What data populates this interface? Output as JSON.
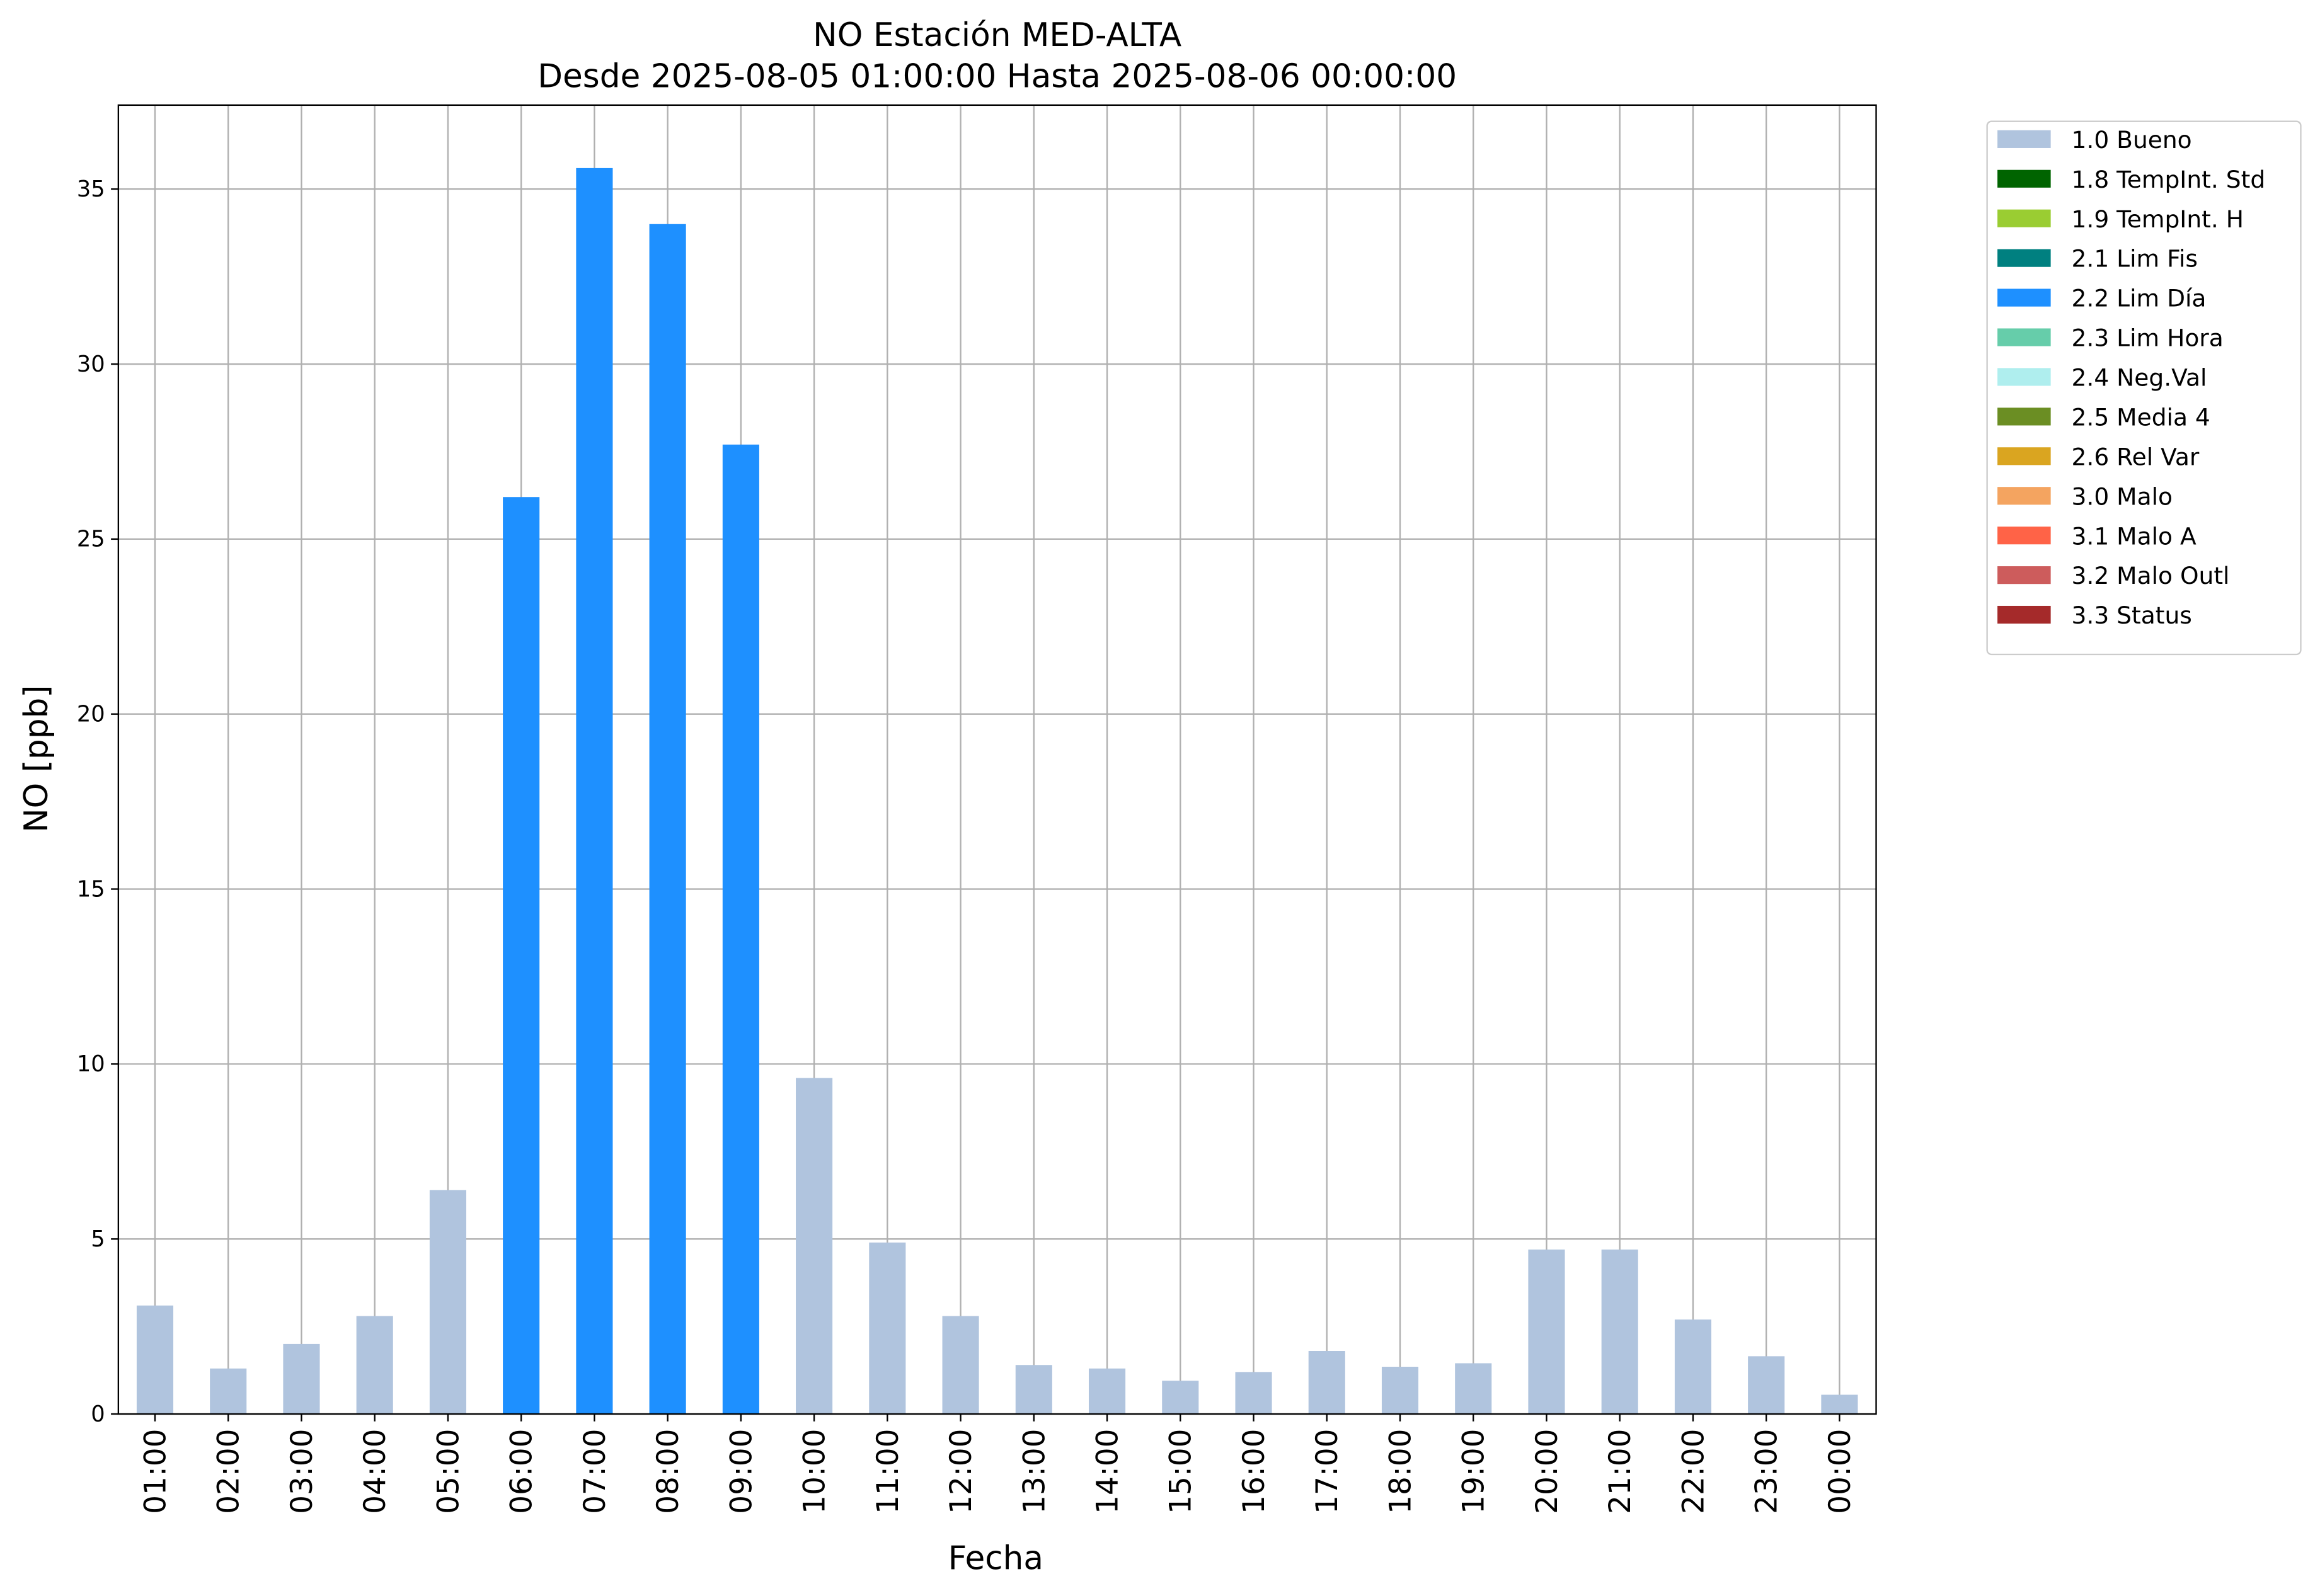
{
  "chart_data": {
    "type": "bar",
    "stacked": true,
    "title": "NO Estación MED-ALTA",
    "subtitle": "Desde 2025-08-05 01:00:00 Hasta 2025-08-06 00:00:00",
    "x_label": "Fecha",
    "y_label": "NO [ppb]",
    "categories": [
      "01:00",
      "02:00",
      "03:00",
      "04:00",
      "05:00",
      "06:00",
      "07:00",
      "08:00",
      "09:00",
      "10:00",
      "11:00",
      "12:00",
      "13:00",
      "14:00",
      "15:00",
      "16:00",
      "17:00",
      "18:00",
      "19:00",
      "20:00",
      "21:00",
      "22:00",
      "23:00",
      "00:00"
    ],
    "series": [
      {
        "name": "1.0 Bueno",
        "color": "#b0c4de",
        "values": [
          3.1,
          1.3,
          2.0,
          2.8,
          6.4,
          null,
          null,
          null,
          null,
          9.6,
          4.9,
          2.8,
          1.4,
          1.3,
          0.95,
          1.2,
          1.8,
          1.35,
          1.45,
          4.7,
          4.7,
          2.7,
          1.65,
          0.55
        ]
      },
      {
        "name": "1.8 TempInt. Std",
        "color": "#006400",
        "values": [
          null,
          null,
          null,
          null,
          null,
          null,
          null,
          null,
          null,
          null,
          null,
          null,
          null,
          null,
          null,
          null,
          null,
          null,
          null,
          null,
          null,
          null,
          null,
          null
        ]
      },
      {
        "name": "1.9 TempInt. H",
        "color": "#9acd32",
        "values": [
          null,
          null,
          null,
          null,
          null,
          null,
          null,
          null,
          null,
          null,
          null,
          null,
          null,
          null,
          null,
          null,
          null,
          null,
          null,
          null,
          null,
          null,
          null,
          null
        ]
      },
      {
        "name": "2.1 Lim Fis",
        "color": "#008080",
        "values": [
          null,
          null,
          null,
          null,
          null,
          null,
          null,
          null,
          null,
          null,
          null,
          null,
          null,
          null,
          null,
          null,
          null,
          null,
          null,
          null,
          null,
          null,
          null,
          null
        ]
      },
      {
        "name": "2.2 Lim Día",
        "color": "#1e90ff",
        "values": [
          null,
          null,
          null,
          null,
          null,
          26.2,
          35.6,
          34.0,
          27.7,
          null,
          null,
          null,
          null,
          null,
          null,
          null,
          null,
          null,
          null,
          null,
          null,
          null,
          null,
          null
        ]
      },
      {
        "name": "2.3 Lim Hora",
        "color": "#66cdaa",
        "values": [
          null,
          null,
          null,
          null,
          null,
          null,
          null,
          null,
          null,
          null,
          null,
          null,
          null,
          null,
          null,
          null,
          null,
          null,
          null,
          null,
          null,
          null,
          null,
          null
        ]
      },
      {
        "name": "2.4 Neg.Val",
        "color": "#afeeee",
        "values": [
          null,
          null,
          null,
          null,
          null,
          null,
          null,
          null,
          null,
          null,
          null,
          null,
          null,
          null,
          null,
          null,
          null,
          null,
          null,
          null,
          null,
          null,
          null,
          null
        ]
      },
      {
        "name": "2.5 Media 4",
        "color": "#6b8e23",
        "values": [
          null,
          null,
          null,
          null,
          null,
          null,
          null,
          null,
          null,
          null,
          null,
          null,
          null,
          null,
          null,
          null,
          null,
          null,
          null,
          null,
          null,
          null,
          null,
          null
        ]
      },
      {
        "name": "2.6 Rel Var",
        "color": "#daa520",
        "values": [
          null,
          null,
          null,
          null,
          null,
          null,
          null,
          null,
          null,
          null,
          null,
          null,
          null,
          null,
          null,
          null,
          null,
          null,
          null,
          null,
          null,
          null,
          null,
          null
        ]
      },
      {
        "name": "3.0 Malo",
        "color": "#f4a460",
        "values": [
          null,
          null,
          null,
          null,
          null,
          null,
          null,
          null,
          null,
          null,
          null,
          null,
          null,
          null,
          null,
          null,
          null,
          null,
          null,
          null,
          null,
          null,
          null,
          null
        ]
      },
      {
        "name": "3.1 Malo A",
        "color": "#ff6347",
        "values": [
          null,
          null,
          null,
          null,
          null,
          null,
          null,
          null,
          null,
          null,
          null,
          null,
          null,
          null,
          null,
          null,
          null,
          null,
          null,
          null,
          null,
          null,
          null,
          null
        ]
      },
      {
        "name": "3.2 Malo Outl",
        "color": "#cd5c5c",
        "values": [
          null,
          null,
          null,
          null,
          null,
          null,
          null,
          null,
          null,
          null,
          null,
          null,
          null,
          null,
          null,
          null,
          null,
          null,
          null,
          null,
          null,
          null,
          null,
          null
        ]
      },
      {
        "name": "3.3 Status",
        "color": "#a52a2a",
        "values": [
          null,
          null,
          null,
          null,
          null,
          null,
          null,
          null,
          null,
          null,
          null,
          null,
          null,
          null,
          null,
          null,
          null,
          null,
          null,
          null,
          null,
          null,
          null,
          null
        ]
      }
    ],
    "ylim": [
      0,
      37.4
    ],
    "yticks": [
      0,
      5,
      10,
      15,
      20,
      25,
      30,
      35
    ],
    "grid": true,
    "legend": "outside upper right"
  }
}
